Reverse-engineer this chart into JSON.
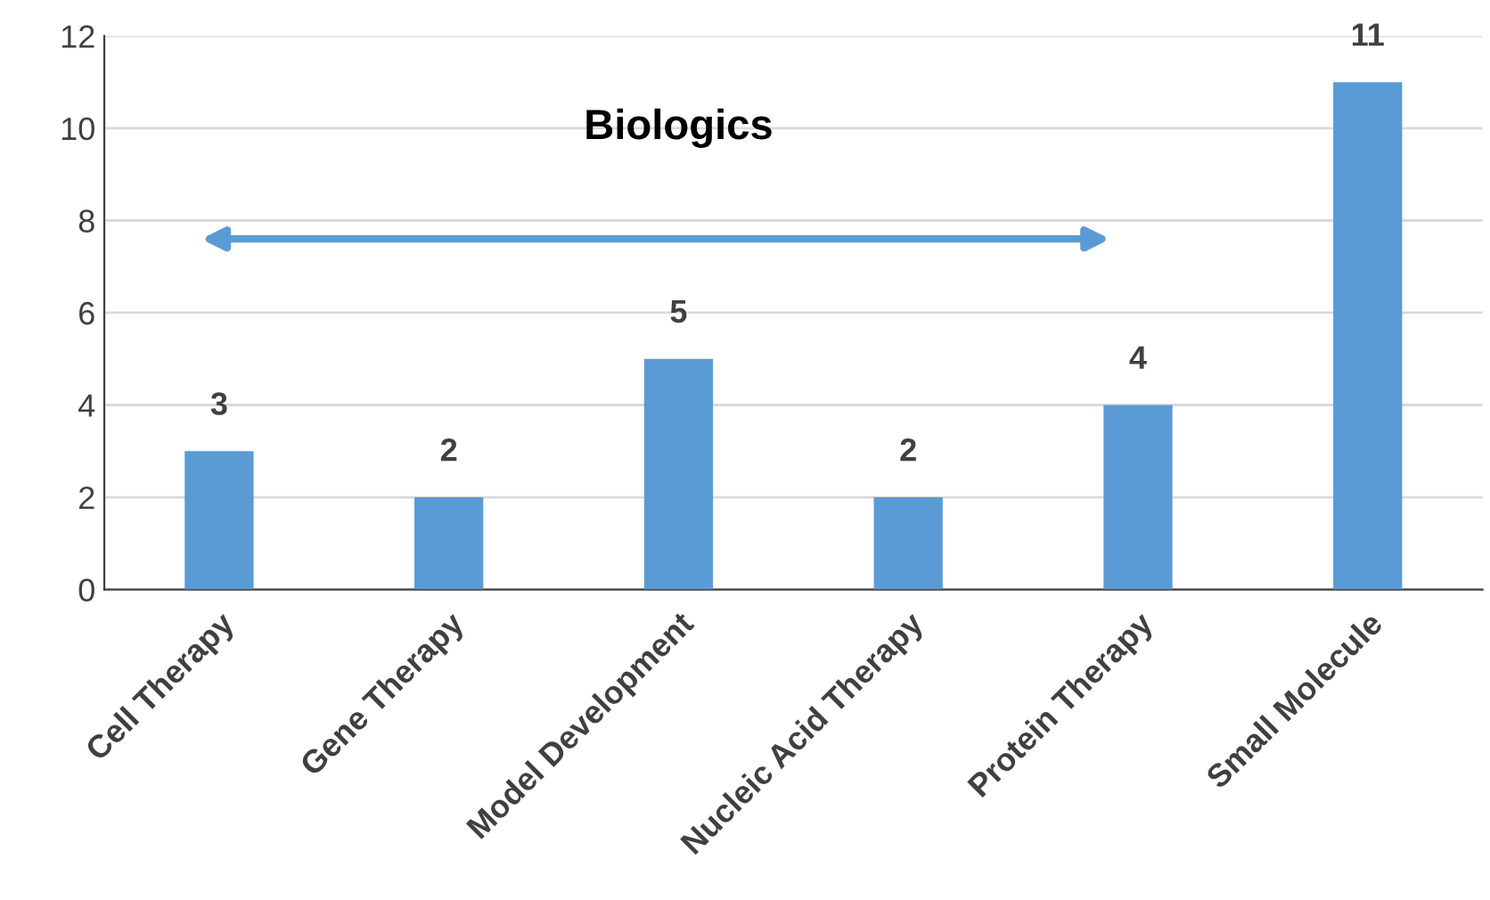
{
  "chart_data": {
    "type": "bar",
    "categories": [
      "Cell Therapy",
      "Gene Therapy",
      "Model Development",
      "Nucleic Acid Therapy",
      "Protein Therapy",
      "Small Molecule"
    ],
    "values": [
      3,
      2,
      5,
      2,
      4,
      11
    ],
    "color": "#5b9bd5",
    "ylim": [
      0,
      12
    ],
    "yticks": [
      0,
      2,
      4,
      6,
      8,
      10,
      12
    ],
    "grid": "y",
    "data_labels": true,
    "annotations": [
      "Biologics"
    ]
  }
}
